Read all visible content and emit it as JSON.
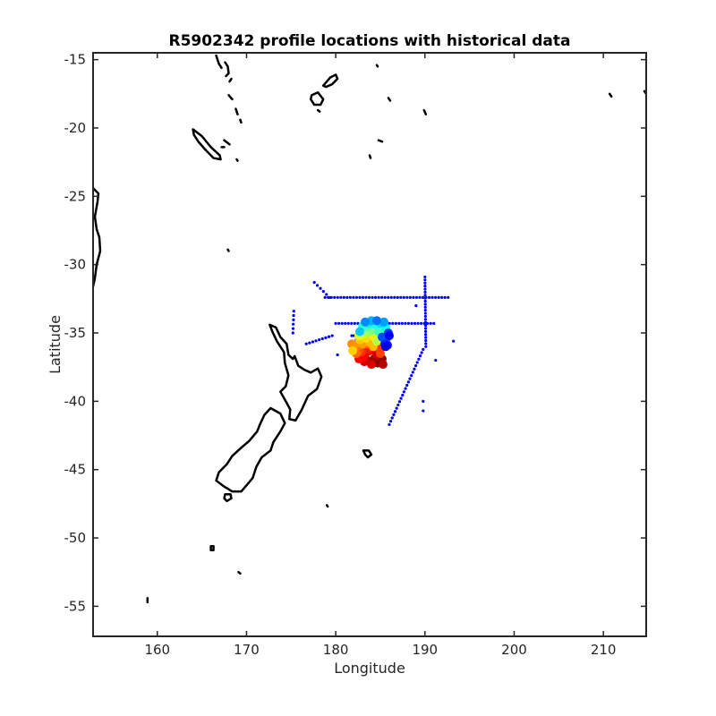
{
  "chart_data": {
    "type": "scatter",
    "title": "R5902342 profile locations with historical data",
    "xlabel": "Longitude",
    "ylabel": "Latitude",
    "xlim": [
      152.8,
      214.8
    ],
    "ylim": [
      -57.2,
      -14.5
    ],
    "xticks": [
      160,
      170,
      180,
      190,
      200,
      210
    ],
    "yticks": [
      -15,
      -20,
      -25,
      -30,
      -35,
      -40,
      -45,
      -50,
      -55
    ],
    "xtick_labels": [
      "160",
      "170",
      "180",
      "190",
      "200",
      "210"
    ],
    "ytick_labels": [
      "-15",
      "-20",
      "-25",
      "-30",
      "-35",
      "-40",
      "-45",
      "-50",
      "-55"
    ],
    "grid": false,
    "legend": "none",
    "colors": {
      "historical": "#0000ff",
      "coastline": "#000000",
      "colormap": "jet"
    },
    "historical_tracks": [
      {
        "name": "",
        "x_start": 178.8,
        "x_end": 192.6,
        "y": -32.4,
        "n": 40
      },
      {
        "name": "",
        "x_start": 180.0,
        "x_end": 191.0,
        "y": -34.3,
        "n": 32
      },
      {
        "name": "",
        "x_start": 177.6,
        "x_end": 179.3,
        "y_start": -31.3,
        "y_end": -32.4,
        "n": 6
      },
      {
        "name": "",
        "x_start": 190.0,
        "x_end": 190.1,
        "y_start": -30.9,
        "y_end": -36.0,
        "n": 24
      },
      {
        "name": "",
        "x_start": 189.8,
        "x_end": 186.0,
        "y_start": -36.2,
        "y_end": -41.7,
        "n": 24
      },
      {
        "name": "",
        "x_start": 175.3,
        "x_end": 175.2,
        "y_start": -33.4,
        "y_end": -35.0,
        "n": 6
      },
      {
        "name": "",
        "x_start": 176.7,
        "x_end": 179.6,
        "y_start": -35.8,
        "y_end": -35.2,
        "n": 9
      },
      {
        "name": "",
        "x_start": 181.8,
        "x_end": 182.6,
        "y_start": -35.2,
        "y_end": -35.2,
        "n": 4
      }
    ],
    "historical_points": [
      {
        "x": 189.8,
        "y": -40.0
      },
      {
        "x": 189.8,
        "y": -40.7
      },
      {
        "x": 191.2,
        "y": -37.0
      },
      {
        "x": 193.2,
        "y": -35.6
      },
      {
        "x": 189.0,
        "y": -33.0
      },
      {
        "x": 182.3,
        "y": -35.5
      },
      {
        "x": 180.2,
        "y": -36.6
      }
    ],
    "float_profiles": {
      "color_by": "profile index",
      "points": [
        {
          "x": 184.7,
          "y": -37.2,
          "c": 1.0
        },
        {
          "x": 185.2,
          "y": -36.9,
          "c": 0.98
        },
        {
          "x": 184.3,
          "y": -36.9,
          "c": 0.97
        },
        {
          "x": 183.5,
          "y": -37.0,
          "c": 0.95
        },
        {
          "x": 185.3,
          "y": -37.3,
          "c": 0.94
        },
        {
          "x": 184.6,
          "y": -36.6,
          "c": 0.93
        },
        {
          "x": 183.2,
          "y": -37.1,
          "c": 0.92
        },
        {
          "x": 184.0,
          "y": -37.3,
          "c": 0.91
        },
        {
          "x": 183.3,
          "y": -36.5,
          "c": 0.9
        },
        {
          "x": 183.8,
          "y": -36.3,
          "c": 0.89
        },
        {
          "x": 183.1,
          "y": -36.8,
          "c": 0.88
        },
        {
          "x": 182.6,
          "y": -36.9,
          "c": 0.87
        },
        {
          "x": 183.6,
          "y": -36.2,
          "c": 0.85
        },
        {
          "x": 182.9,
          "y": -36.4,
          "c": 0.83
        },
        {
          "x": 184.8,
          "y": -36.1,
          "c": 0.82
        },
        {
          "x": 185.0,
          "y": -36.5,
          "c": 0.81
        },
        {
          "x": 182.6,
          "y": -36.3,
          "c": 0.8
        },
        {
          "x": 182.9,
          "y": -35.9,
          "c": 0.79
        },
        {
          "x": 183.5,
          "y": -35.8,
          "c": 0.78
        },
        {
          "x": 182.3,
          "y": -36.5,
          "c": 0.77
        },
        {
          "x": 182.4,
          "y": -36.0,
          "c": 0.76
        },
        {
          "x": 183.2,
          "y": -35.6,
          "c": 0.75
        },
        {
          "x": 181.8,
          "y": -35.8,
          "c": 0.74
        },
        {
          "x": 182.1,
          "y": -35.9,
          "c": 0.73
        },
        {
          "x": 183.0,
          "y": -35.8,
          "c": 0.72
        },
        {
          "x": 183.8,
          "y": -35.7,
          "c": 0.7
        },
        {
          "x": 184.2,
          "y": -36.0,
          "c": 0.69
        },
        {
          "x": 182.7,
          "y": -35.5,
          "c": 0.68
        },
        {
          "x": 181.9,
          "y": -36.3,
          "c": 0.67
        },
        {
          "x": 183.4,
          "y": -35.4,
          "c": 0.66
        },
        {
          "x": 184.3,
          "y": -35.3,
          "c": 0.64
        },
        {
          "x": 185.1,
          "y": -35.5,
          "c": 0.62
        },
        {
          "x": 182.6,
          "y": -35.2,
          "c": 0.6
        },
        {
          "x": 183.0,
          "y": -35.1,
          "c": 0.58
        },
        {
          "x": 184.6,
          "y": -35.6,
          "c": 0.56
        },
        {
          "x": 183.6,
          "y": -35.0,
          "c": 0.54
        },
        {
          "x": 182.9,
          "y": -34.8,
          "c": 0.52
        },
        {
          "x": 184.1,
          "y": -34.8,
          "c": 0.5
        },
        {
          "x": 185.3,
          "y": -35.1,
          "c": 0.48
        },
        {
          "x": 183.4,
          "y": -34.6,
          "c": 0.46
        },
        {
          "x": 184.8,
          "y": -34.9,
          "c": 0.44
        },
        {
          "x": 183.0,
          "y": -34.5,
          "c": 0.42
        },
        {
          "x": 184.4,
          "y": -34.4,
          "c": 0.4
        },
        {
          "x": 185.6,
          "y": -34.6,
          "c": 0.38
        },
        {
          "x": 183.7,
          "y": -34.3,
          "c": 0.36
        },
        {
          "x": 185.0,
          "y": -34.3,
          "c": 0.34
        },
        {
          "x": 182.7,
          "y": -34.9,
          "c": 0.32
        },
        {
          "x": 184.0,
          "y": -34.1,
          "c": 0.3
        },
        {
          "x": 185.4,
          "y": -34.2,
          "c": 0.28
        },
        {
          "x": 183.3,
          "y": -34.2,
          "c": 0.26
        },
        {
          "x": 184.6,
          "y": -34.1,
          "c": 0.24
        },
        {
          "x": 185.7,
          "y": -35.4,
          "c": 0.22
        },
        {
          "x": 185.2,
          "y": -35.3,
          "c": 0.2
        },
        {
          "x": 185.9,
          "y": -35.0,
          "c": 0.18
        },
        {
          "x": 185.5,
          "y": -35.8,
          "c": 0.16
        },
        {
          "x": 185.8,
          "y": -35.9,
          "c": 0.14
        },
        {
          "x": 186.0,
          "y": -35.2,
          "c": 0.12
        },
        {
          "x": 185.6,
          "y": -36.0,
          "c": 0.1
        }
      ]
    }
  }
}
